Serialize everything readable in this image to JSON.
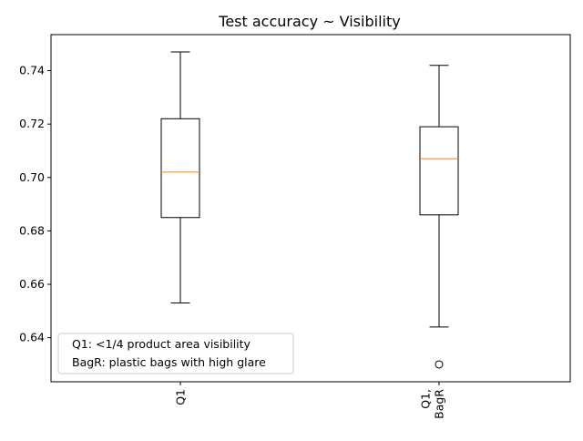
{
  "chart_data": {
    "type": "box",
    "title": "Test accuracy ~ Visibility",
    "xlabel": "",
    "ylabel": "",
    "ylim": [
      0.6235,
      0.7535
    ],
    "yticks": [
      0.64,
      0.66,
      0.68,
      0.7,
      0.72,
      0.74
    ],
    "ytick_labels": [
      "0.64",
      "0.66",
      "0.68",
      "0.70",
      "0.72",
      "0.74"
    ],
    "categories": [
      {
        "label_lines": [
          "Q1"
        ]
      },
      {
        "label_lines": [
          "Q1,",
          "BagR"
        ]
      }
    ],
    "boxes": [
      {
        "whisker_low": 0.653,
        "q1": 0.685,
        "median": 0.702,
        "q3": 0.722,
        "whisker_high": 0.747,
        "outliers": []
      },
      {
        "whisker_low": 0.644,
        "q1": 0.686,
        "median": 0.707,
        "q3": 0.719,
        "whisker_high": 0.742,
        "outliers": [
          0.63
        ]
      }
    ],
    "legend": {
      "placement": "lower-left",
      "entries": [
        "Q1: <1/4 product area visibility",
        "BagR: plastic bags with high glare"
      ]
    },
    "grid": false,
    "colors": {
      "box": "#000000",
      "median": "#ff7f0e",
      "background": "#ffffff"
    }
  }
}
